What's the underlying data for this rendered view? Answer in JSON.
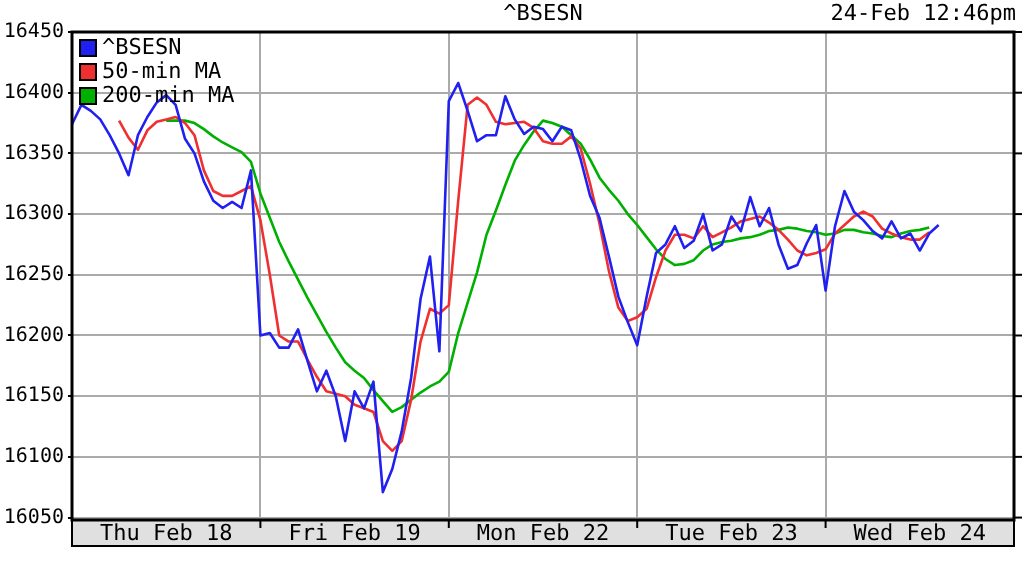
{
  "chart_data": {
    "type": "line",
    "title": "^BSESN",
    "annotations": [
      "24-Feb 12:46pm"
    ],
    "categories": [
      null,
      null,
      null,
      null,
      null,
      null,
      null,
      null,
      null,
      null,
      "Thu Feb 18",
      null,
      null,
      null,
      null,
      null,
      null,
      null,
      null,
      null,
      null,
      null,
      null,
      null,
      null,
      null,
      null,
      null,
      null,
      null,
      "Fri Feb 19",
      null,
      null,
      null,
      null,
      null,
      null,
      null,
      null,
      null,
      null,
      null,
      null,
      null,
      null,
      null,
      null,
      null,
      null,
      null,
      "Mon Feb 22",
      null,
      null,
      null,
      null,
      null,
      null,
      null,
      null,
      null,
      null,
      null,
      null,
      null,
      null,
      null,
      null,
      null,
      null,
      null,
      "Tue Feb 23",
      null,
      null,
      null,
      null,
      null,
      null,
      null,
      null,
      null,
      null,
      null,
      null,
      null,
      null,
      null,
      null,
      null,
      null,
      null,
      "Wed Feb 24",
      null,
      null,
      null,
      null,
      null,
      null,
      null,
      null,
      null,
      null
    ],
    "ylim": [
      16048,
      16450
    ],
    "yticks": [
      16050,
      16100,
      16150,
      16200,
      16250,
      16300,
      16350,
      16400,
      16450
    ],
    "grid": true,
    "legend": "top left",
    "marker": "none",
    "line_style": "solid",
    "series": [
      {
        "name": "^BSESN",
        "color": "#2020f0",
        "values": [
          16374,
          16390,
          16385,
          16378,
          16365,
          16350,
          16332,
          16365,
          16380,
          16392,
          16398,
          16390,
          16362,
          16350,
          16327,
          16311,
          16305,
          16310,
          16305,
          16336,
          16200,
          16202,
          16190,
          16190,
          16205,
          16179,
          16154,
          16171,
          16150,
          16113,
          16154,
          16140,
          16162,
          16071,
          16090,
          16121,
          16165,
          16230,
          16265,
          16187,
          16393,
          16408,
          16385,
          16360,
          16365,
          16365,
          16397,
          16378,
          16366,
          16372,
          16370,
          16360,
          16372,
          16369,
          16345,
          16315,
          16297,
          16265,
          16232,
          16211,
          16192,
          16232,
          16268,
          16275,
          16290,
          16272,
          16278,
          16300,
          16270,
          16275,
          16298,
          16286,
          16314,
          16290,
          16305,
          16275,
          16255,
          16258,
          16276,
          16291,
          16237,
          16290,
          16319,
          16302,
          16295,
          16286,
          16280,
          16294,
          16280,
          16284,
          16270,
          16284,
          16291,
          null,
          null,
          null,
          null,
          null,
          null,
          null,
          null
        ]
      },
      {
        "name": "50-min MA",
        "color": "#f03030",
        "values": [
          null,
          null,
          null,
          null,
          null,
          16377,
          16363,
          16353,
          16369,
          16376,
          16378,
          16380,
          16375,
          16365,
          16336,
          16319,
          16315,
          16315,
          16319,
          16323,
          16295,
          16250,
          16200,
          16195,
          16195,
          16180,
          16166,
          16154,
          16152,
          16150,
          16143,
          16140,
          16137,
          16113,
          16105,
          16113,
          16147,
          16195,
          16222,
          16218,
          16225,
          16311,
          16390,
          16396,
          16390,
          16376,
          16374,
          16375,
          16376,
          16371,
          16360,
          16358,
          16358,
          16364,
          16354,
          16325,
          16292,
          16253,
          16223,
          16212,
          16215,
          16222,
          16248,
          16270,
          16283,
          16283,
          16280,
          16290,
          16281,
          16285,
          16289,
          16294,
          16296,
          16298,
          16293,
          16287,
          16279,
          16270,
          16266,
          16268,
          16271,
          16284,
          16291,
          16298,
          16302,
          16298,
          16288,
          16284,
          16281,
          16279,
          16279,
          16285,
          null,
          null,
          null,
          null,
          null,
          null,
          null,
          null,
          null
        ]
      },
      {
        "name": "200-min MA",
        "color": "#00b000",
        "values": [
          null,
          null,
          null,
          null,
          null,
          null,
          null,
          null,
          null,
          null,
          16377,
          16377,
          16377,
          16375,
          16370,
          16364,
          16359,
          16355,
          16351,
          16343,
          16317,
          16297,
          16277,
          16261,
          16246,
          16231,
          16217,
          16203,
          16190,
          16178,
          16171,
          16165,
          16155,
          16146,
          16137,
          16141,
          16147,
          16153,
          16158,
          16162,
          16170,
          16202,
          16227,
          16252,
          16283,
          16303,
          16324,
          16344,
          16357,
          16368,
          16377,
          16375,
          16372,
          16365,
          16358,
          16345,
          16330,
          16320,
          16311,
          16300,
          16291,
          16281,
          16271,
          16263,
          16258,
          16259,
          16262,
          16270,
          16275,
          16277,
          16278,
          16280,
          16281,
          16283,
          16286,
          16287,
          16289,
          16288,
          16286,
          16285,
          16283,
          16284,
          16287,
          16287,
          16285,
          16284,
          16282,
          16281,
          16284,
          16286,
          16287,
          16289,
          null,
          null,
          null,
          null,
          null,
          null,
          null,
          null,
          null
        ]
      }
    ]
  }
}
